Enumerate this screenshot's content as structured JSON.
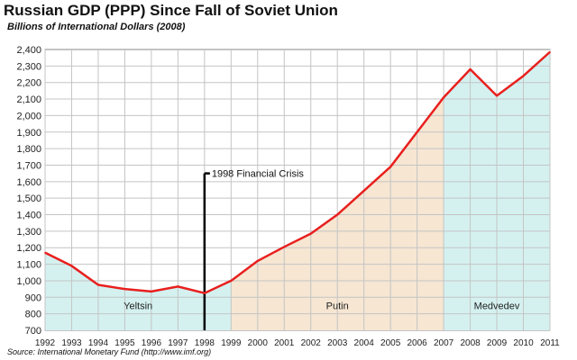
{
  "title": "Russian GDP (PPP) Since Fall of Soviet Union",
  "subtitle": "Billions of International Dollars (2008)",
  "source": "Source: International Monetary Fund (http://www.imf.org)",
  "chart_data": {
    "type": "line",
    "title": "Russian GDP (PPP) Since Fall of Soviet Union",
    "subtitle": "Billions of International Dollars (2008)",
    "xlabel": "",
    "ylabel": "",
    "x": [
      1992,
      1993,
      1994,
      1995,
      1996,
      1997,
      1998,
      1999,
      2000,
      2001,
      2002,
      2003,
      2004,
      2005,
      2006,
      2007,
      2008,
      2009,
      2010,
      2011
    ],
    "series": [
      {
        "name": "",
        "color": "#e8201e",
        "values": [
          1170,
          1090,
          975,
          950,
          935,
          965,
          925,
          1000,
          1120,
          1205,
          1285,
          1400,
          1545,
          1690,
          1900,
          2110,
          2280,
          2120,
          2240,
          2385
        ]
      }
    ],
    "ylim": [
      700,
      2400
    ],
    "yticks": [
      700,
      800,
      900,
      1000,
      1100,
      1200,
      1300,
      1400,
      1500,
      1600,
      1700,
      1800,
      1900,
      2000,
      2100,
      2200,
      2300,
      2400
    ],
    "ytick_labels": [
      "700",
      "800",
      "900",
      "1,000",
      "1,100",
      "1,200",
      "1,300",
      "1,400",
      "1,500",
      "1,600",
      "1,700",
      "1,800",
      "1,900",
      "2,000",
      "2,100",
      "2,200",
      "2,300",
      "2,400"
    ],
    "grid": true,
    "periods": [
      {
        "label": "Yeltsin",
        "start": 1992,
        "end": 1999,
        "color": "#d4f1f0"
      },
      {
        "label": "Putin",
        "start": 1999,
        "end": 2007,
        "color": "#f6e6d2"
      },
      {
        "label": "Medvedev",
        "start": 2007,
        "end": 2011,
        "color": "#d4f1f0"
      }
    ],
    "annotation": {
      "label": "1998 Financial Crisis",
      "x": 1998,
      "y_top": 1650
    }
  }
}
